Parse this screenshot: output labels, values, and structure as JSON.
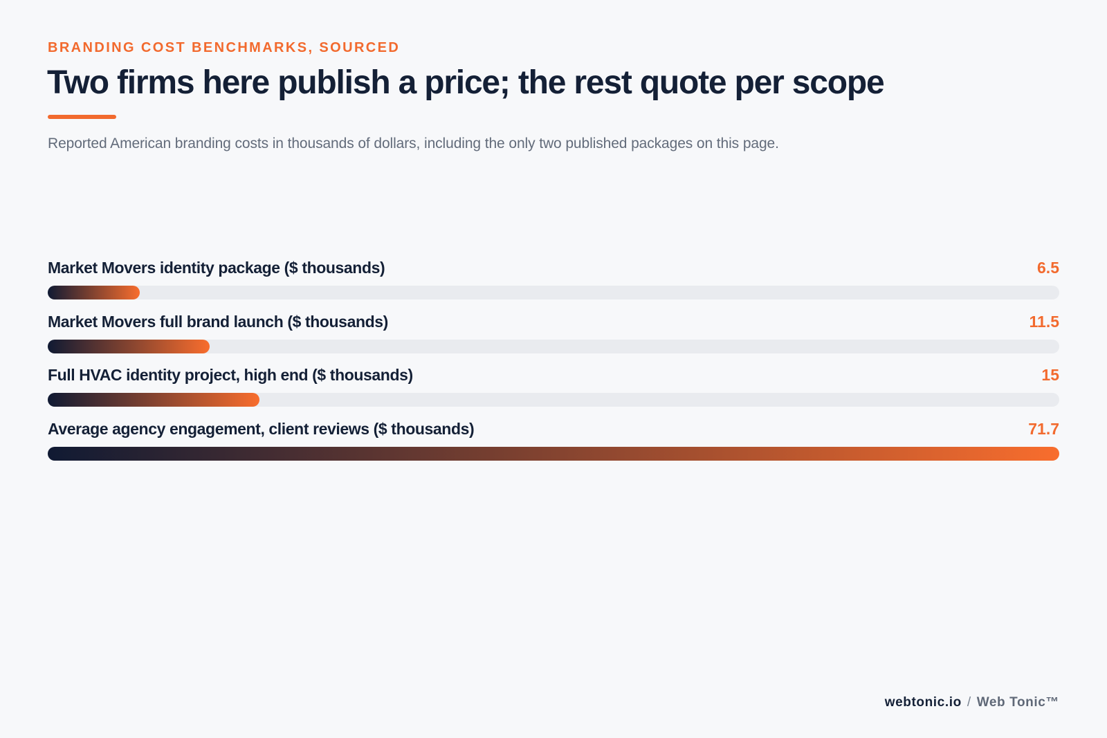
{
  "header": {
    "eyebrow": "BRANDING COST BENCHMARKS, SOURCED",
    "title": "Two firms here publish a price; the rest quote per scope",
    "subtitle": "Reported American branding costs in thousands of dollars, including the only two published packages on this page."
  },
  "colors": {
    "accent": "#f26a2e",
    "navy": "#142036",
    "track": "#e9ebef",
    "gradient_start": "#101a33",
    "gradient_end": "#f86d2d"
  },
  "chart_data": {
    "type": "bar",
    "orientation": "horizontal",
    "categories": [
      "Market Movers identity package ($ thousands)",
      "Market Movers full brand launch ($ thousands)",
      "Full HVAC identity project, high end ($ thousands)",
      "Average agency engagement, client reviews ($ thousands)"
    ],
    "values": [
      6.5,
      11.5,
      15,
      71.7
    ],
    "value_labels": [
      "6.5",
      "11.5",
      "15",
      "71.7"
    ],
    "xlim": [
      0,
      71.7
    ],
    "grid": false,
    "legend": "none"
  },
  "footer": {
    "site": "webtonic.io",
    "separator": "/",
    "brand": "Web Tonic™"
  }
}
